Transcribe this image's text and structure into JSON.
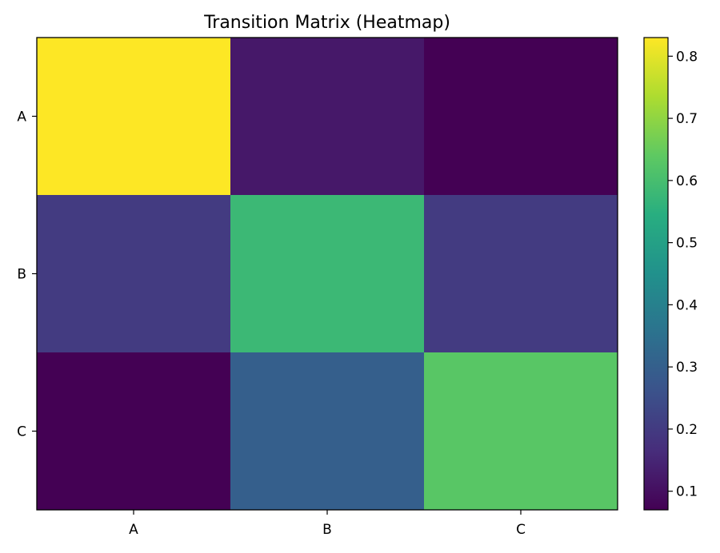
{
  "chart_data": {
    "type": "heatmap",
    "title": "Transition Matrix (Heatmap)",
    "xlabel": "",
    "ylabel": "",
    "x_categories": [
      "A",
      "B",
      "C"
    ],
    "y_categories": [
      "A",
      "B",
      "C"
    ],
    "values": [
      [
        0.83,
        0.12,
        0.07
      ],
      [
        0.2,
        0.58,
        0.2
      ],
      [
        0.07,
        0.3,
        0.63
      ]
    ],
    "colormap": "viridis",
    "colorbar": {
      "range": [
        0.07,
        0.83
      ],
      "ticks": [
        "0.1",
        "0.2",
        "0.3",
        "0.4",
        "0.5",
        "0.6",
        "0.7",
        "0.8"
      ]
    },
    "grid": false
  }
}
